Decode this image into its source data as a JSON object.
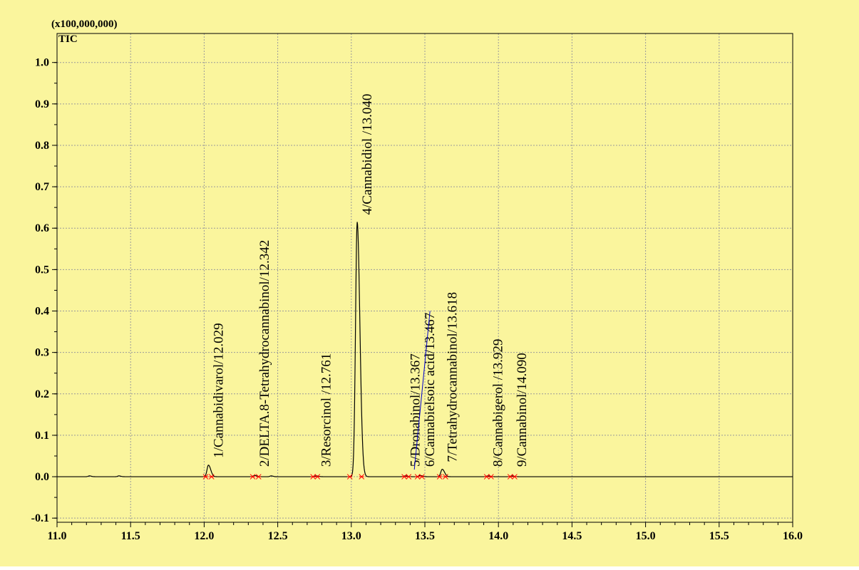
{
  "colors": {
    "background": "#FAF59D",
    "plot_background": "#FAF59D",
    "grid": "#9a9a9a",
    "trace": "#000000",
    "peak_marker": "#ff0000",
    "annotation_line": "#0000cc"
  },
  "chart_data": {
    "type": "line",
    "scale_label": "(x100,000,000)",
    "ylabel": "TIC",
    "xlim": [
      11.0,
      16.0
    ],
    "ylim": [
      -0.11,
      1.07
    ],
    "x_ticks": [
      11.0,
      11.5,
      12.0,
      12.5,
      13.0,
      13.5,
      14.0,
      14.5,
      15.0,
      15.5,
      16.0
    ],
    "x_tick_labels": [
      "11.0",
      "11.5",
      "12.0",
      "12.5",
      "13.0",
      "13.5",
      "14.0",
      "14.5",
      "15.0",
      "15.5",
      "16.0"
    ],
    "y_ticks": [
      -0.1,
      0.0,
      0.1,
      0.2,
      0.3,
      0.4,
      0.5,
      0.6,
      0.7,
      0.8,
      0.9,
      1.0
    ],
    "y_tick_labels": [
      "-0.1",
      "0.0",
      "0.1",
      "0.2",
      "0.3",
      "0.4",
      "0.5",
      "0.6",
      "0.7",
      "0.8",
      "0.9",
      "1.0"
    ],
    "grid": true,
    "baseline": 0.0,
    "peaks": [
      {
        "label": "1/Cannabidivarol/12.029",
        "rt": 12.029,
        "height": 0.028,
        "width": 0.012,
        "start": 12.01,
        "end": 12.05
      },
      {
        "label": "2/DELTA.8-Tetrahydrocannabinol/12.342",
        "rt": 12.342,
        "height": 0.003,
        "width": 0.012,
        "start": 12.33,
        "end": 12.37
      },
      {
        "label": "3/Resorcinol  /12.761",
        "rt": 12.761,
        "height": 0.002,
        "width": 0.012,
        "start": 12.74,
        "end": 12.77
      },
      {
        "label": "4/Cannabidiol /13.040",
        "rt": 13.04,
        "height": 0.615,
        "width": 0.014,
        "start": 12.99,
        "end": 13.07
      },
      {
        "label": "5/Dronabinol/13.367",
        "rt": 13.367,
        "height": 0.002,
        "width": 0.012,
        "start": 13.36,
        "end": 13.39
      },
      {
        "label": "6/Cannabielsoic acid/13.467",
        "rt": 13.467,
        "height": 0.003,
        "width": 0.012,
        "start": 13.45,
        "end": 13.48
      },
      {
        "label": "7/Tetrahydrocannabinol/13.618",
        "rt": 13.618,
        "height": 0.018,
        "width": 0.012,
        "start": 13.6,
        "end": 13.64
      },
      {
        "label": "8/Cannabigerol /13.929",
        "rt": 13.929,
        "height": 0.002,
        "width": 0.012,
        "start": 13.92,
        "end": 13.95
      },
      {
        "label": "9/Cannabinol/14.090",
        "rt": 14.09,
        "height": 0.002,
        "width": 0.012,
        "start": 14.08,
        "end": 14.11
      }
    ],
    "minor_bumps": [
      {
        "rt": 11.22,
        "height": 0.002
      },
      {
        "rt": 11.42,
        "height": 0.002
      },
      {
        "rt": 12.455,
        "height": 0.002
      }
    ]
  }
}
